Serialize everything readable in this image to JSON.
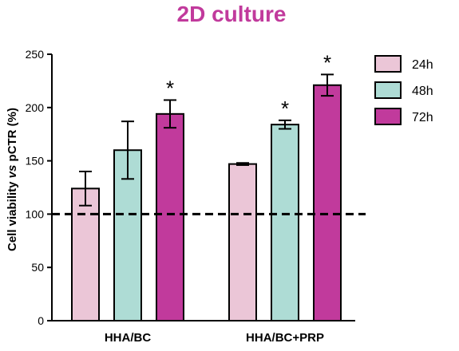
{
  "chart_data": {
    "type": "bar",
    "title": "2D culture",
    "title_color": "#c13a9c",
    "ylabel_parts": [
      "Cell viability ",
      "vs",
      " pCTR (%)"
    ],
    "xlabel": "",
    "ylim": [
      0,
      250
    ],
    "yticks": [
      0,
      50,
      100,
      150,
      200,
      250
    ],
    "grid": false,
    "reference_line": {
      "y": 100,
      "style": "dashed"
    },
    "legend_position": "top-right",
    "categories": [
      "HHA/BC",
      "HHA/BC+PRP"
    ],
    "series": [
      {
        "name": "24h",
        "color": "#ebc6d7",
        "values": [
          124,
          147
        ],
        "errors": [
          16,
          1
        ],
        "significant": [
          false,
          false
        ]
      },
      {
        "name": "48h",
        "color": "#aedcd5",
        "values": [
          160,
          184
        ],
        "errors": [
          27,
          4
        ],
        "significant": [
          false,
          true
        ]
      },
      {
        "name": "72h",
        "color": "#c13a9c",
        "values": [
          194,
          221
        ],
        "errors": [
          13,
          10
        ],
        "significant": [
          true,
          true
        ]
      }
    ],
    "significance_mark": "*"
  }
}
